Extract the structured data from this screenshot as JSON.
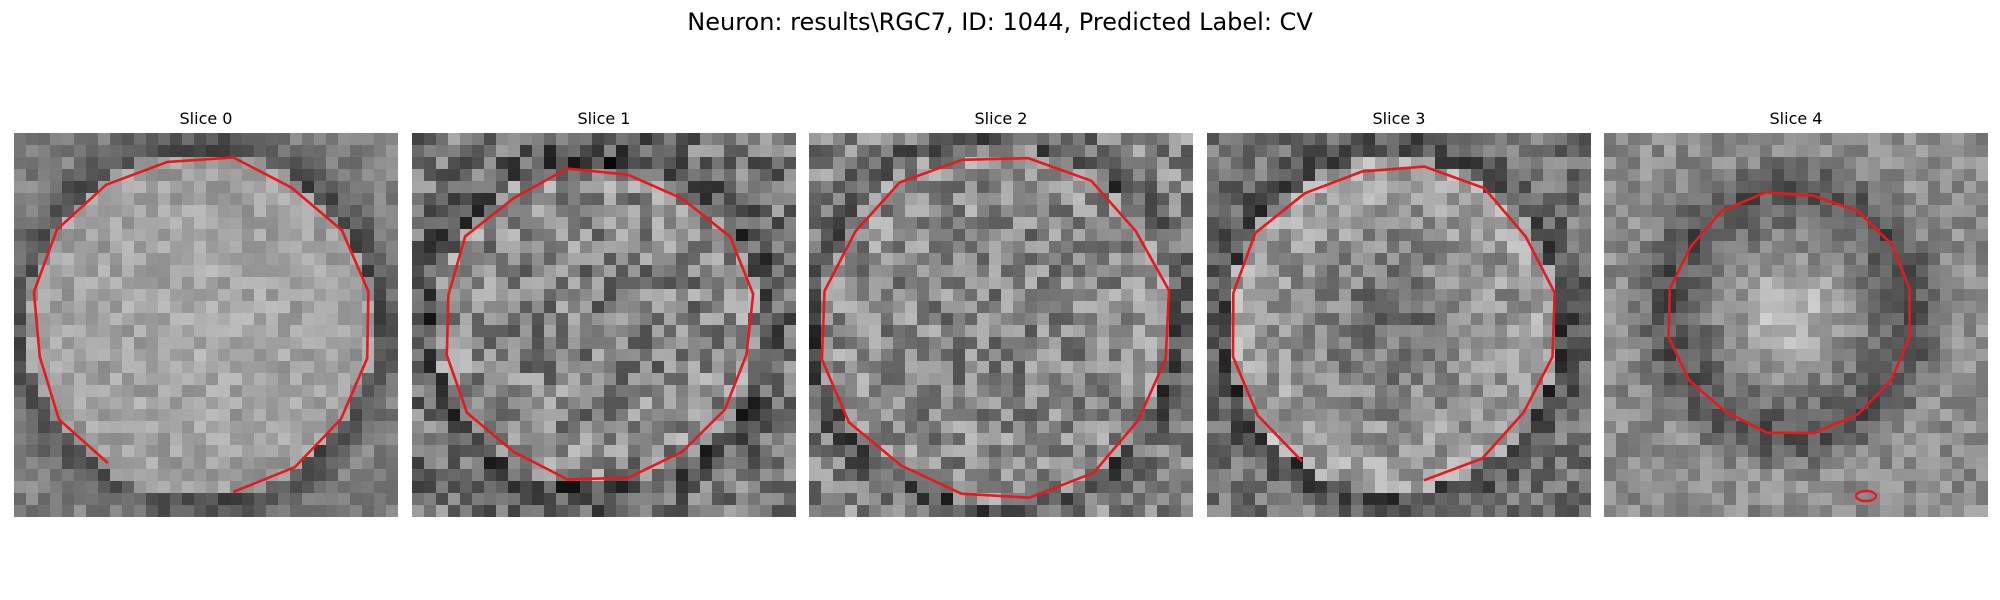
{
  "figure": {
    "title": "Neuron: results\\RGC7, ID: 1044, Predicted Label: CV",
    "contour_color": "#e8191c",
    "colormap": "grayscale",
    "slices": [
      {
        "title": "Slice 0"
      },
      {
        "title": "Slice 1"
      },
      {
        "title": "Slice 2"
      },
      {
        "title": "Slice 3"
      },
      {
        "title": "Slice 4"
      }
    ]
  }
}
